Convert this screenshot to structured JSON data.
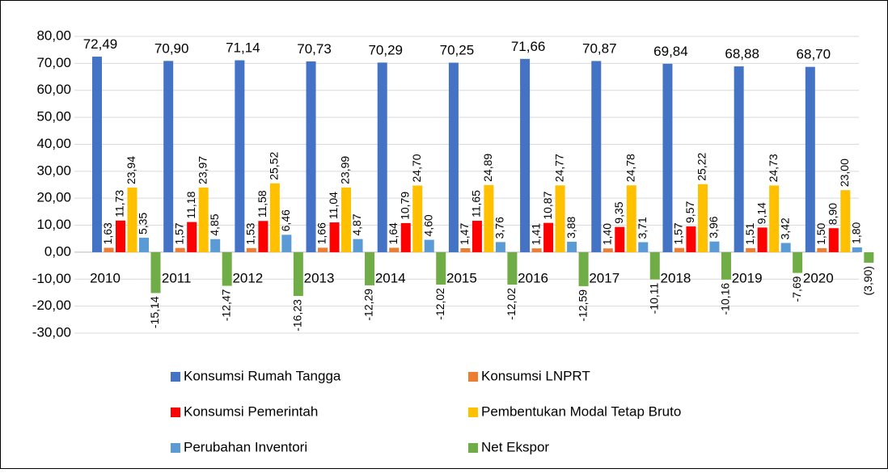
{
  "chart_data": {
    "type": "bar",
    "categories": [
      "2010",
      "2011",
      "2012",
      "2013",
      "2014",
      "2015",
      "2016",
      "2017",
      "2018",
      "2019",
      "2020"
    ],
    "ylim": [
      -30,
      80
    ],
    "yticks": [
      {
        "value": -30,
        "label": "-30,00"
      },
      {
        "value": -20,
        "label": "-20,00"
      },
      {
        "value": -10,
        "label": "-10,00"
      },
      {
        "value": 0,
        "label": "0,00"
      },
      {
        "value": 10,
        "label": "10,00"
      },
      {
        "value": 20,
        "label": "20,00"
      },
      {
        "value": 30,
        "label": "30,00"
      },
      {
        "value": 40,
        "label": "40,00"
      },
      {
        "value": 50,
        "label": "50,00"
      },
      {
        "value": 60,
        "label": "60,00"
      },
      {
        "value": 70,
        "label": "70,00"
      },
      {
        "value": 80,
        "label": "80,00"
      }
    ],
    "grid": true,
    "legend": "bottom",
    "series": [
      {
        "name": "Konsumsi Rumah Tangga",
        "color": "#4472c4",
        "values": [
          72.49,
          70.9,
          71.14,
          70.73,
          70.29,
          70.25,
          71.66,
          70.87,
          69.84,
          68.88,
          68.7
        ],
        "value_labels": [
          "72,49",
          "70,90",
          "71,14",
          "70,73",
          "70,29",
          "70,25",
          "71,66",
          "70,87",
          "69,84",
          "68,88",
          "68,70"
        ]
      },
      {
        "name": "Konsumsi LNPRT",
        "color": "#ed7d31",
        "values": [
          1.63,
          1.57,
          1.53,
          1.66,
          1.64,
          1.47,
          1.41,
          1.4,
          1.57,
          1.51,
          1.5
        ],
        "value_labels": [
          "1,63",
          "1,57",
          "1,53",
          "1,66",
          "1,64",
          "1,47",
          "1,41",
          "1,40",
          "1,57",
          "1,51",
          "1,50"
        ]
      },
      {
        "name": "Konsumsi Pemerintah",
        "color": "#ff0000",
        "values": [
          11.73,
          11.18,
          11.58,
          11.04,
          10.79,
          11.65,
          10.87,
          9.35,
          9.57,
          9.14,
          8.9
        ],
        "value_labels": [
          "11,73",
          "11,18",
          "11,58",
          "11,04",
          "10,79",
          "11,65",
          "10,87",
          "9,35",
          "9,57",
          "9,14",
          "8,90"
        ]
      },
      {
        "name": "Pembentukan Modal Tetap Bruto",
        "color": "#ffc000",
        "values": [
          23.94,
          23.97,
          25.52,
          23.99,
          24.7,
          24.89,
          24.77,
          24.78,
          25.22,
          24.73,
          23.0
        ],
        "value_labels": [
          "23,94",
          "23,97",
          "25,52",
          "23,99",
          "24,70",
          "24,89",
          "24,77",
          "24,78",
          "25,22",
          "24,73",
          "23,00"
        ]
      },
      {
        "name": "Perubahan Inventori",
        "color": "#5b9bd5",
        "values": [
          5.35,
          4.85,
          6.46,
          4.87,
          4.6,
          3.76,
          3.88,
          3.71,
          3.96,
          3.42,
          1.8
        ],
        "value_labels": [
          "5,35",
          "4,85",
          "6,46",
          "4,87",
          "4,60",
          "3,76",
          "3,88",
          "3,71",
          "3,96",
          "3,42",
          "1,80"
        ]
      },
      {
        "name": "Net Ekspor",
        "color": "#70ad47",
        "values": [
          -15.14,
          -12.47,
          -16.23,
          -12.29,
          -12.02,
          -12.02,
          -12.59,
          -10.11,
          -10.16,
          -7.69,
          -3.9
        ],
        "value_labels": [
          "-15,14",
          "-12,47",
          "-16,23",
          "-12,29",
          "-12,02",
          "-12,02",
          "-12,59",
          "-10,11",
          "-10,16",
          "-7,69",
          "(3,90)"
        ]
      }
    ]
  }
}
